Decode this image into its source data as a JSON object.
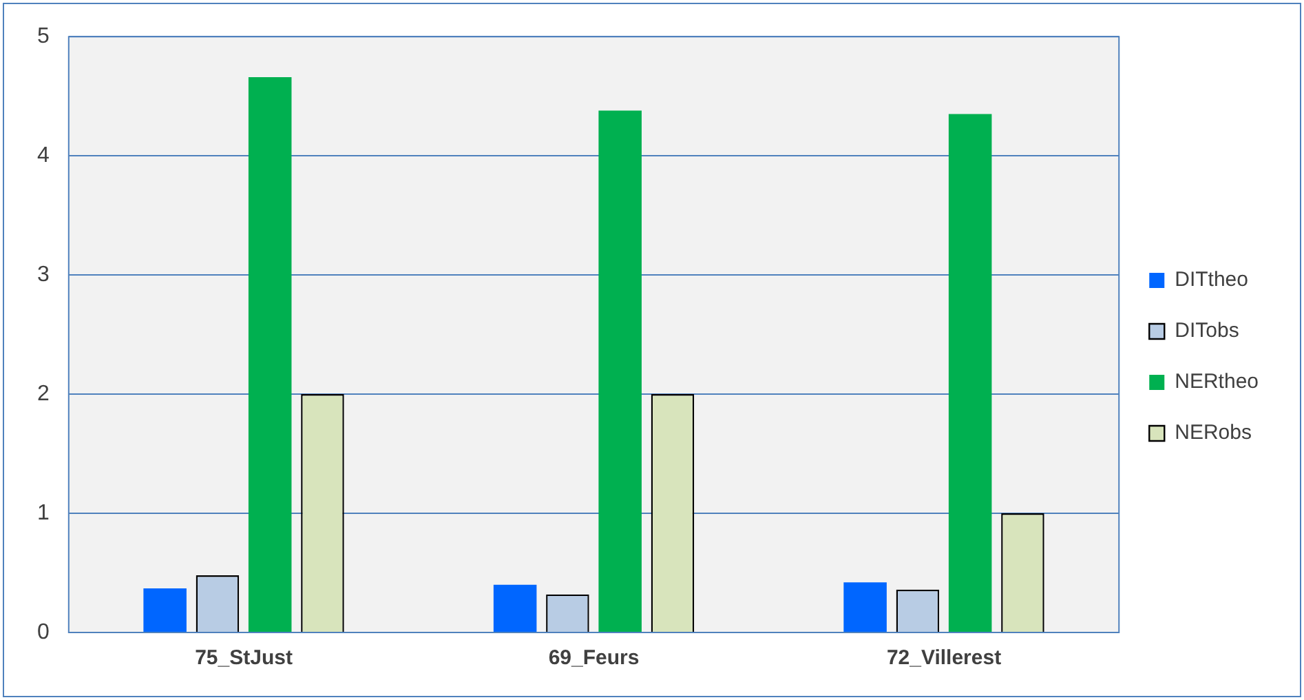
{
  "chart_data": {
    "type": "bar",
    "categories": [
      "75_StJust",
      "69_Feurs",
      "72_Villerest"
    ],
    "series": [
      {
        "name": "DITtheo",
        "color": "#0066ff",
        "values": [
          0.37,
          0.4,
          0.42
        ]
      },
      {
        "name": "DITobs",
        "color": "#b8cce4",
        "values": [
          0.48,
          0.32,
          0.36
        ]
      },
      {
        "name": "NERtheo",
        "color": "#00b050",
        "values": [
          4.66,
          4.38,
          4.35
        ]
      },
      {
        "name": "NERobs",
        "color": "#d8e4bc",
        "values": [
          2.0,
          2.0,
          1.0
        ]
      }
    ],
    "ylim": [
      0,
      5
    ],
    "yticks": [
      0,
      1,
      2,
      3,
      4,
      5
    ],
    "grid": "y",
    "legend": "right"
  }
}
